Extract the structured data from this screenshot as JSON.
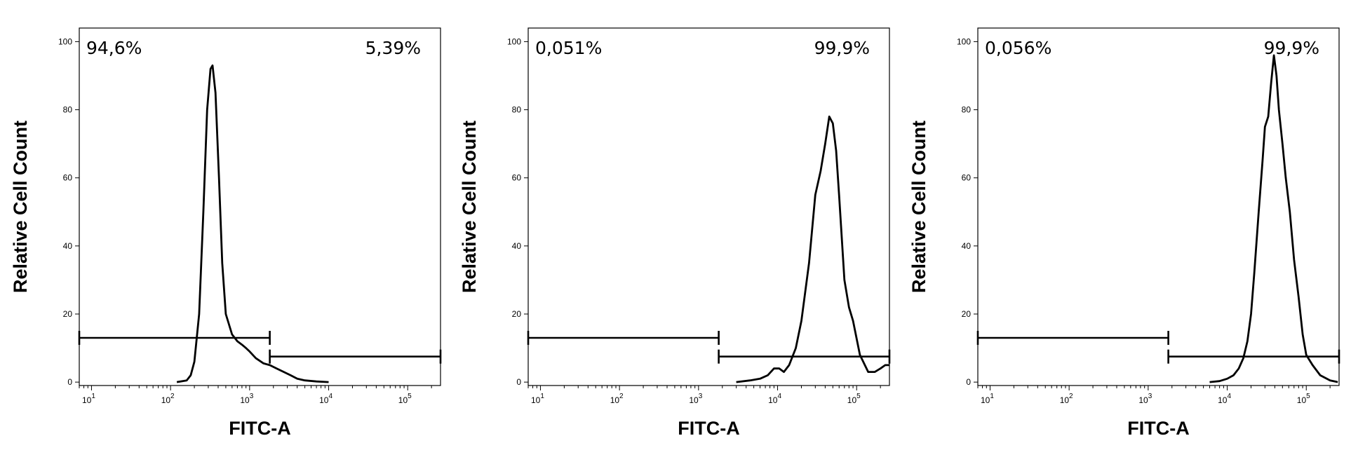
{
  "chart_data": [
    {
      "type": "histogram",
      "xlabel": "FITC-A",
      "ylabel": "Relative Cell Count",
      "x_scale": "log",
      "xlim": [
        7,
        260000
      ],
      "ylim": [
        -1,
        104
      ],
      "y_ticks": [
        "0",
        "20",
        "40",
        "60",
        "80",
        "100"
      ],
      "x_ticks": [
        {
          "value": 10,
          "base": "10",
          "exp": "1"
        },
        {
          "value": 100,
          "base": "10",
          "exp": "2"
        },
        {
          "value": 1000,
          "base": "10",
          "exp": "3"
        },
        {
          "value": 10000,
          "base": "10",
          "exp": "4"
        },
        {
          "value": 100000,
          "base": "10",
          "exp": "5"
        }
      ],
      "gates": [
        {
          "label": "94,6%",
          "x_start": 7,
          "x_end": 1800,
          "y_level": 13
        },
        {
          "label": "5,39%",
          "x_start": 1800,
          "x_end": 260000,
          "y_level": 7.5
        }
      ],
      "series": [
        {
          "points": [
            [
              120,
              0
            ],
            [
              160,
              0.5
            ],
            [
              180,
              2
            ],
            [
              200,
              6
            ],
            [
              230,
              20
            ],
            [
              260,
              50
            ],
            [
              290,
              80
            ],
            [
              320,
              92
            ],
            [
              340,
              93
            ],
            [
              370,
              85
            ],
            [
              410,
              60
            ],
            [
              450,
              35
            ],
            [
              500,
              20
            ],
            [
              600,
              14
            ],
            [
              700,
              12
            ],
            [
              800,
              11
            ],
            [
              900,
              10
            ],
            [
              1000,
              9
            ],
            [
              1200,
              7
            ],
            [
              1500,
              5.5
            ],
            [
              1800,
              5
            ],
            [
              2200,
              4
            ],
            [
              2700,
              3
            ],
            [
              3300,
              2
            ],
            [
              4000,
              1
            ],
            [
              5000,
              0.5
            ],
            [
              7000,
              0.2
            ],
            [
              10000,
              0
            ]
          ]
        }
      ]
    },
    {
      "type": "histogram",
      "xlabel": "FITC-A",
      "ylabel": "Relative Cell Count",
      "x_scale": "log",
      "xlim": [
        7,
        260000
      ],
      "ylim": [
        -1,
        104
      ],
      "y_ticks": [
        "0",
        "20",
        "40",
        "60",
        "80",
        "100"
      ],
      "x_ticks": [
        {
          "value": 10,
          "base": "10",
          "exp": "1"
        },
        {
          "value": 100,
          "base": "10",
          "exp": "2"
        },
        {
          "value": 1000,
          "base": "10",
          "exp": "3"
        },
        {
          "value": 10000,
          "base": "10",
          "exp": "4"
        },
        {
          "value": 100000,
          "base": "10",
          "exp": "5"
        }
      ],
      "gates": [
        {
          "label": "0,051%",
          "x_start": 7,
          "x_end": 1800,
          "y_level": 13
        },
        {
          "label": "99,9%",
          "x_start": 1800,
          "x_end": 260000,
          "y_level": 7.5
        }
      ],
      "series": [
        {
          "points": [
            [
              3000,
              0
            ],
            [
              4500,
              0.5
            ],
            [
              6000,
              1
            ],
            [
              7500,
              2
            ],
            [
              9000,
              4
            ],
            [
              10500,
              4
            ],
            [
              12000,
              3
            ],
            [
              14000,
              5
            ],
            [
              17000,
              10
            ],
            [
              20000,
              18
            ],
            [
              25000,
              35
            ],
            [
              30000,
              55
            ],
            [
              35000,
              62
            ],
            [
              40000,
              70
            ],
            [
              45000,
              78
            ],
            [
              50000,
              76
            ],
            [
              55000,
              68
            ],
            [
              60000,
              55
            ],
            [
              70000,
              30
            ],
            [
              80000,
              22
            ],
            [
              90000,
              18
            ],
            [
              110000,
              8
            ],
            [
              140000,
              3
            ],
            [
              170000,
              3
            ],
            [
              200000,
              4
            ],
            [
              230000,
              5
            ],
            [
              260000,
              5
            ]
          ]
        }
      ]
    },
    {
      "type": "histogram",
      "xlabel": "FITC-A",
      "ylabel": "Relative Cell Count",
      "x_scale": "log",
      "xlim": [
        7,
        260000
      ],
      "ylim": [
        -1,
        104
      ],
      "y_ticks": [
        "0",
        "20",
        "40",
        "60",
        "80",
        "100"
      ],
      "x_ticks": [
        {
          "value": 10,
          "base": "10",
          "exp": "1"
        },
        {
          "value": 100,
          "base": "10",
          "exp": "2"
        },
        {
          "value": 1000,
          "base": "10",
          "exp": "3"
        },
        {
          "value": 10000,
          "base": "10",
          "exp": "4"
        },
        {
          "value": 100000,
          "base": "10",
          "exp": "5"
        }
      ],
      "gates": [
        {
          "label": "0,056%",
          "x_start": 7,
          "x_end": 1800,
          "y_level": 13
        },
        {
          "label": "99,9%",
          "x_start": 1800,
          "x_end": 260000,
          "y_level": 7.5
        }
      ],
      "series": [
        {
          "points": [
            [
              6000,
              0
            ],
            [
              8000,
              0.3
            ],
            [
              10000,
              1
            ],
            [
              12000,
              2
            ],
            [
              14000,
              4
            ],
            [
              16000,
              7
            ],
            [
              18000,
              12
            ],
            [
              20000,
              20
            ],
            [
              22000,
              32
            ],
            [
              25000,
              50
            ],
            [
              28000,
              65
            ],
            [
              30000,
              75
            ],
            [
              33000,
              78
            ],
            [
              36000,
              88
            ],
            [
              39000,
              96
            ],
            [
              42000,
              90
            ],
            [
              45000,
              80
            ],
            [
              50000,
              70
            ],
            [
              55000,
              60
            ],
            [
              62000,
              50
            ],
            [
              70000,
              36
            ],
            [
              80000,
              25
            ],
            [
              90000,
              14
            ],
            [
              100000,
              8
            ],
            [
              120000,
              5
            ],
            [
              150000,
              2
            ],
            [
              200000,
              0.5
            ],
            [
              250000,
              0
            ]
          ]
        }
      ]
    }
  ]
}
